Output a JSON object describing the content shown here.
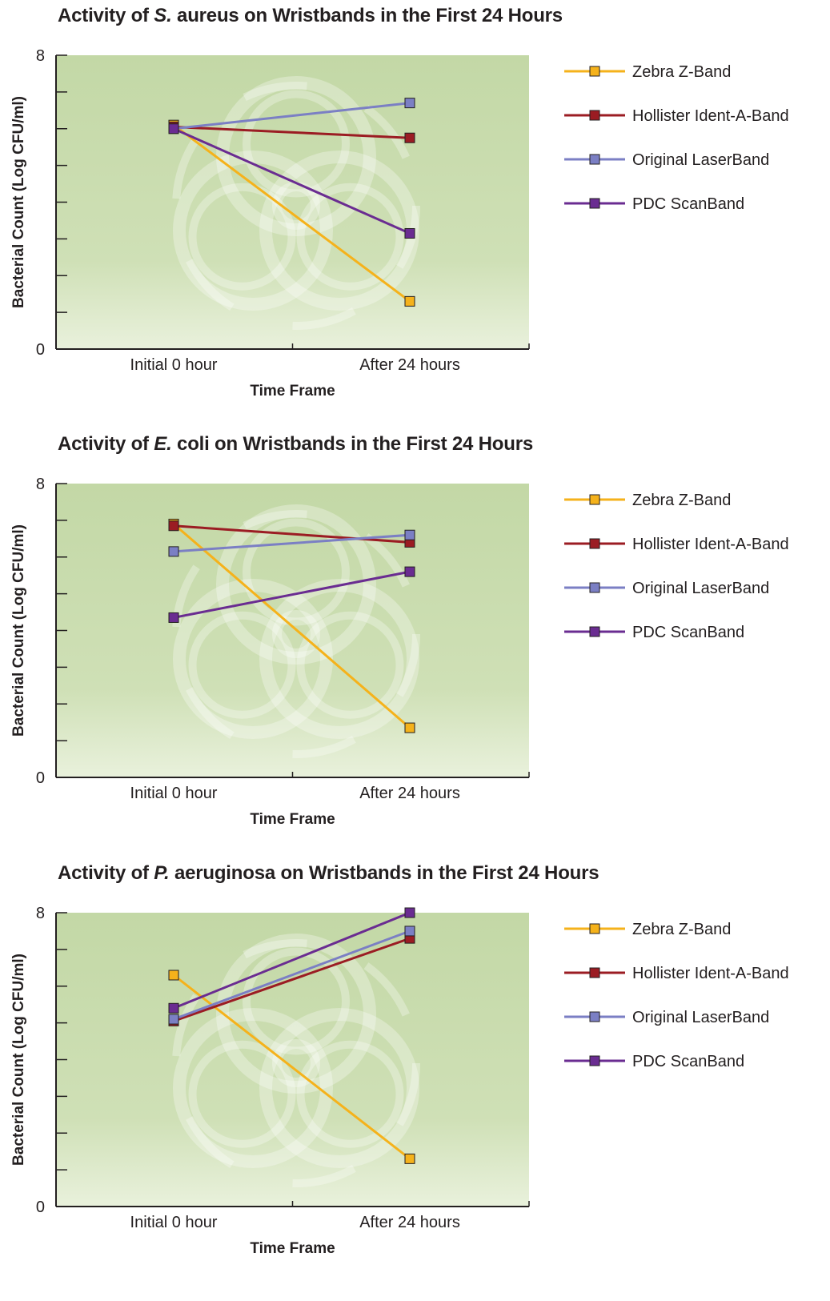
{
  "chart_data": [
    {
      "type": "line",
      "title_prefix": "Activity of ",
      "title_species": "S.",
      "title_suffix": " aureus on Wristbands in the First 24 Hours",
      "xlabel": "Time Frame",
      "ylabel": "Bacterial Count (Log CFU/ml)",
      "ylim": [
        0,
        8
      ],
      "ytick_labels": [
        "0",
        "8"
      ],
      "categories": [
        "Initial 0 hour",
        "After 24 hours"
      ],
      "series": [
        {
          "name": "Zebra Z-Band",
          "values": [
            6.1,
            1.3
          ],
          "color": "#f5b21b"
        },
        {
          "name": "Hollister Ident-A-Band",
          "values": [
            6.05,
            5.75
          ],
          "color": "#9b1c23"
        },
        {
          "name": "Original LaserBand",
          "values": [
            6.0,
            6.7
          ],
          "color": "#7b7fc4"
        },
        {
          "name": "PDC ScanBand",
          "values": [
            6.0,
            3.15
          ],
          "color": "#6a2c91"
        }
      ],
      "legend_position": "right",
      "grid": false
    },
    {
      "type": "line",
      "title_prefix": "Activity of ",
      "title_species": "E.",
      "title_suffix": " coli on Wristbands in the First 24 Hours",
      "xlabel": "Time Frame",
      "ylabel": "Bacterial Count (Log CFU/ml)",
      "ylim": [
        0,
        8
      ],
      "ytick_labels": [
        "0",
        "8"
      ],
      "categories": [
        "Initial 0 hour",
        "After 24 hours"
      ],
      "series": [
        {
          "name": "Zebra Z-Band",
          "values": [
            6.9,
            1.35
          ],
          "color": "#f5b21b"
        },
        {
          "name": "Hollister Ident-A-Band",
          "values": [
            6.85,
            6.4
          ],
          "color": "#9b1c23"
        },
        {
          "name": "Original LaserBand",
          "values": [
            6.15,
            6.6
          ],
          "color": "#7b7fc4"
        },
        {
          "name": "PDC ScanBand",
          "values": [
            4.35,
            5.6
          ],
          "color": "#6a2c91"
        }
      ],
      "legend_position": "right",
      "grid": false
    },
    {
      "type": "line",
      "title_prefix": "Activity of ",
      "title_species": "P.",
      "title_suffix": " aeruginosa on Wristbands in the First 24 Hours",
      "xlabel": "Time Frame",
      "ylabel": "Bacterial Count (Log CFU/ml)",
      "ylim": [
        0,
        8
      ],
      "ytick_labels": [
        "0",
        "8"
      ],
      "categories": [
        "Initial 0 hour",
        "After 24 hours"
      ],
      "series": [
        {
          "name": "Zebra Z-Band",
          "values": [
            6.3,
            1.3
          ],
          "color": "#f5b21b"
        },
        {
          "name": "Hollister Ident-A-Band",
          "values": [
            5.05,
            7.3
          ],
          "color": "#9b1c23"
        },
        {
          "name": "Original LaserBand",
          "values": [
            5.1,
            7.5
          ],
          "color": "#7b7fc4"
        },
        {
          "name": "PDC ScanBand",
          "values": [
            5.4,
            8.0
          ],
          "color": "#6a2c91"
        }
      ],
      "legend_position": "right",
      "grid": false
    }
  ],
  "colors": {
    "plot_bg_top": "#c3d8a6",
    "plot_bg_bottom": "#e9f1dc",
    "watermark": "#ffffff",
    "axis": "#231f20"
  },
  "watermark_icon": "biohazard-icon"
}
